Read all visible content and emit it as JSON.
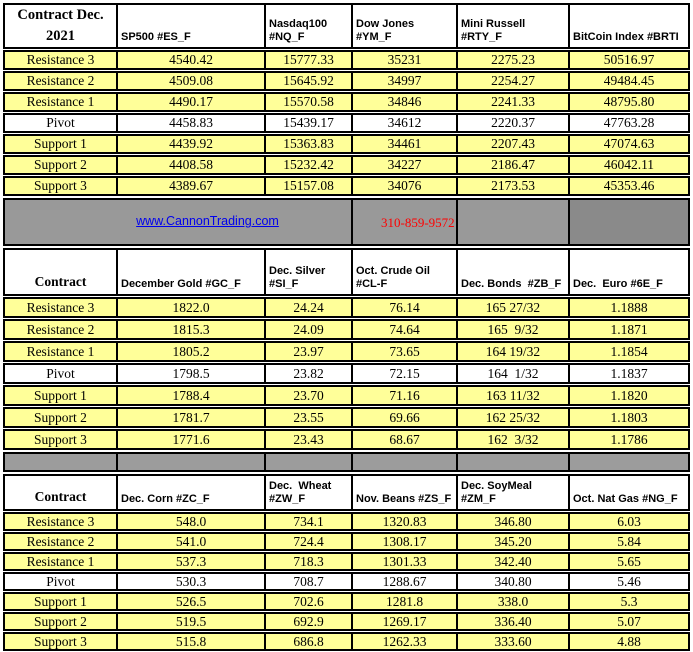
{
  "info_band": {
    "website": "www.CannonTrading.com",
    "phone": "310-859-9572"
  },
  "colors": {
    "row_yellow": "#FFFF99",
    "pivot_white": "#FFFFFF",
    "band_gray": "#999999",
    "band_gray_dark": "#8A8A8A",
    "border_black": "#000000",
    "link_blue": "#0000EE",
    "phone_red": "#FF0000"
  },
  "sections": [
    {
      "label_header": "Contract Dec.\n2021",
      "columns": [
        "SP500 #ES_F",
        "Nasdaq100\n#NQ_F",
        "Dow Jones\n#YM_F",
        "Mini Russell\n#RTY_F",
        "BitCoin Index #BRTI"
      ],
      "rows": [
        {
          "label": "Resistance 3",
          "values": [
            "4540.42",
            "15777.33",
            "35231",
            "2275.23",
            "50516.97"
          ]
        },
        {
          "label": "Resistance 2",
          "values": [
            "4509.08",
            "15645.92",
            "34997",
            "2254.27",
            "49484.45"
          ]
        },
        {
          "label": "Resistance 1",
          "values": [
            "4490.17",
            "15570.58",
            "34846",
            "2241.33",
            "48795.80"
          ]
        },
        {
          "label": "Pivot",
          "values": [
            "4458.83",
            "15439.17",
            "34612",
            "2220.37",
            "47763.28"
          ]
        },
        {
          "label": "Support 1",
          "values": [
            "4439.92",
            "15363.83",
            "34461",
            "2207.43",
            "47074.63"
          ]
        },
        {
          "label": "Support 2",
          "values": [
            "4408.58",
            "15232.42",
            "34227",
            "2186.47",
            "46042.11"
          ]
        },
        {
          "label": "Support 3",
          "values": [
            "4389.67",
            "15157.08",
            "34076",
            "2173.53",
            "45353.46"
          ]
        }
      ]
    },
    {
      "label_header": "Contract",
      "columns": [
        "December Gold #GC_F",
        "Dec. Silver\n#SI_F",
        "Oct. Crude Oil\n#CL-F",
        "Dec. Bonds  #ZB_F",
        "Dec.  Euro #6E_F"
      ],
      "rows": [
        {
          "label": "Resistance 3",
          "values": [
            "1822.0",
            "24.24",
            "76.14",
            "165 27/32",
            "1.1888"
          ]
        },
        {
          "label": "Resistance 2",
          "values": [
            "1815.3",
            "24.09",
            "74.64",
            "165  9/32",
            "1.1871"
          ]
        },
        {
          "label": "Resistance 1",
          "values": [
            "1805.2",
            "23.97",
            "73.65",
            "164 19/32",
            "1.1854"
          ]
        },
        {
          "label": "Pivot",
          "values": [
            "1798.5",
            "23.82",
            "72.15",
            "164  1/32",
            "1.1837"
          ]
        },
        {
          "label": "Support 1",
          "values": [
            "1788.4",
            "23.70",
            "71.16",
            "163 11/32",
            "1.1820"
          ]
        },
        {
          "label": "Support 2",
          "values": [
            "1781.7",
            "23.55",
            "69.66",
            "162 25/32",
            "1.1803"
          ]
        },
        {
          "label": "Support 3",
          "values": [
            "1771.6",
            "23.43",
            "68.67",
            "162  3/32",
            "1.1786"
          ]
        }
      ]
    },
    {
      "label_header": "Contract",
      "columns": [
        "Dec. Corn #ZC_F",
        "Dec.  Wheat\n#ZW_F",
        "Nov. Beans #ZS_F",
        "Dec. SoyMeal\n#ZM_F",
        "Oct. Nat Gas #NG_F"
      ],
      "rows": [
        {
          "label": "Resistance 3",
          "values": [
            "548.0",
            "734.1",
            "1320.83",
            "346.80",
            "6.03"
          ]
        },
        {
          "label": "Resistance 2",
          "values": [
            "541.0",
            "724.4",
            "1308.17",
            "345.20",
            "5.84"
          ]
        },
        {
          "label": "Resistance 1",
          "values": [
            "537.3",
            "718.3",
            "1301.33",
            "342.40",
            "5.65"
          ]
        },
        {
          "label": "Pivot",
          "values": [
            "530.3",
            "708.7",
            "1288.67",
            "340.80",
            "5.46"
          ]
        },
        {
          "label": "Support 1",
          "values": [
            "526.5",
            "702.6",
            "1281.8",
            "338.0",
            "5.3"
          ]
        },
        {
          "label": "Support 2",
          "values": [
            "519.5",
            "692.9",
            "1269.17",
            "336.40",
            "5.07"
          ]
        },
        {
          "label": "Support 3",
          "values": [
            "515.8",
            "686.8",
            "1262.33",
            "333.60",
            "4.88"
          ]
        }
      ]
    }
  ]
}
